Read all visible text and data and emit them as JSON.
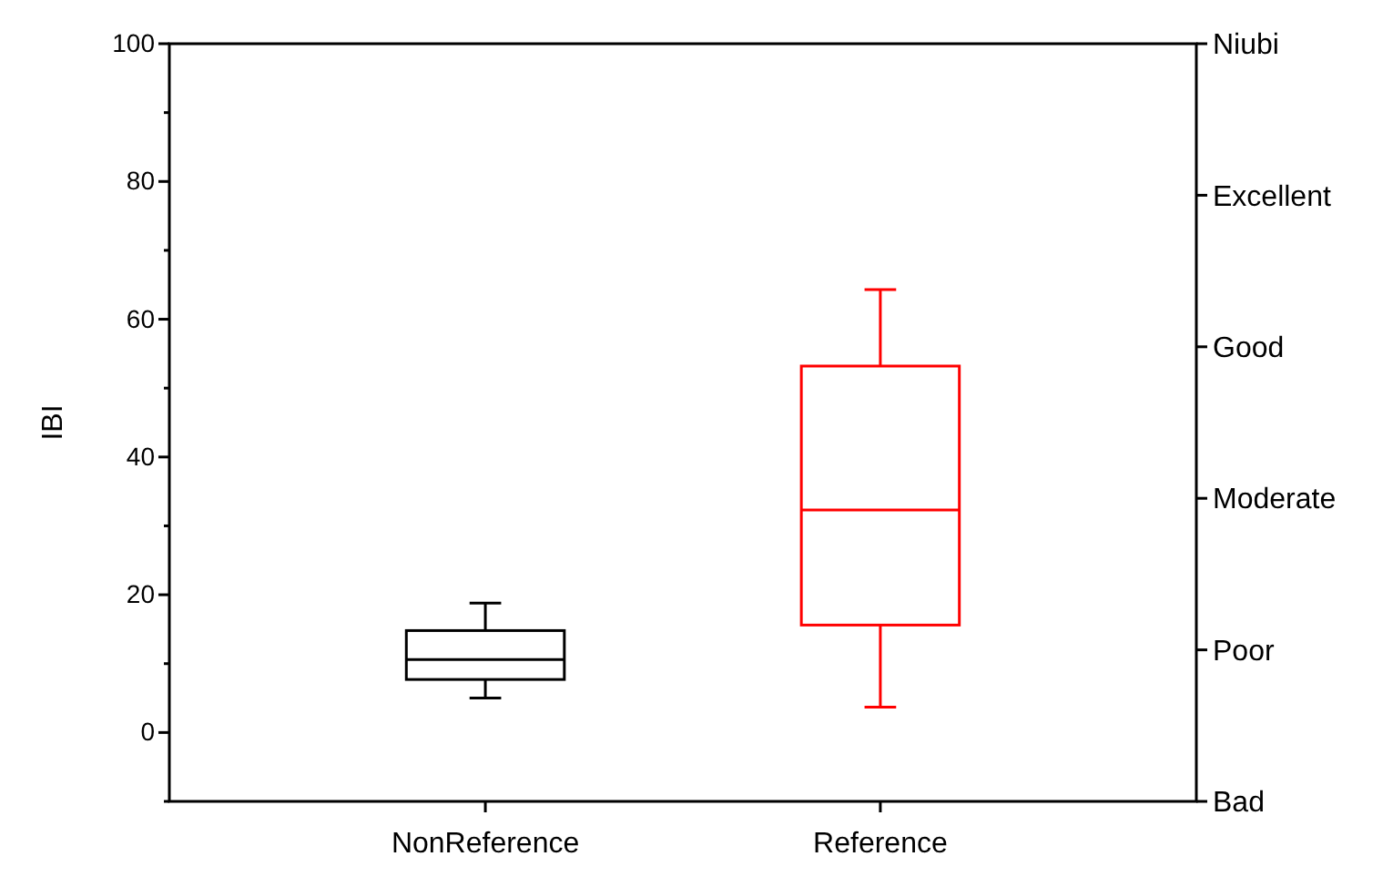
{
  "chart_data": {
    "type": "box",
    "ylabel": "IBI",
    "categories": [
      "NonReference",
      "Reference"
    ],
    "colors": [
      "#000000",
      "#ff0000"
    ],
    "boxes": [
      {
        "low": 5,
        "q1": 7.7,
        "median": 10.6,
        "q3": 14.8,
        "high": 18.8
      },
      {
        "low": 3.7,
        "q1": 15.6,
        "median": 32.3,
        "q3": 53.2,
        "high": 64.3
      }
    ],
    "ylim": [
      -10,
      100
    ],
    "yticks": [
      {
        "value": -10,
        "label": null
      },
      0,
      {
        "value": 10,
        "label": null
      },
      20,
      {
        "value": 30,
        "label": null
      },
      40,
      {
        "value": 50,
        "label": null
      },
      60,
      {
        "value": 70,
        "label": null
      },
      80,
      {
        "value": 90,
        "label": null
      },
      100
    ],
    "annotations": [
      "Niubi",
      "Excellent",
      "Good",
      "Moderate",
      "Poor",
      "Bad"
    ],
    "grid": false
  }
}
